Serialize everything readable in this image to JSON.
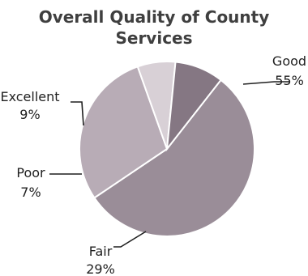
{
  "chart_data": {
    "type": "pie",
    "title_lines": [
      "Overall Quality of County",
      "Services"
    ],
    "slices": [
      {
        "label": "Good",
        "value": 55,
        "value_label": "55%",
        "color": "#9a8d98"
      },
      {
        "label": "Fair",
        "value": 29,
        "value_label": "29%",
        "color": "#b8acb6"
      },
      {
        "label": "Poor",
        "value": 7,
        "value_label": "7%",
        "color": "#d8d0d6"
      },
      {
        "label": "Excellent",
        "value": 9,
        "value_label": "9%",
        "color": "#857783"
      }
    ],
    "start_angle_deg": 38,
    "direction": "clockwise"
  }
}
